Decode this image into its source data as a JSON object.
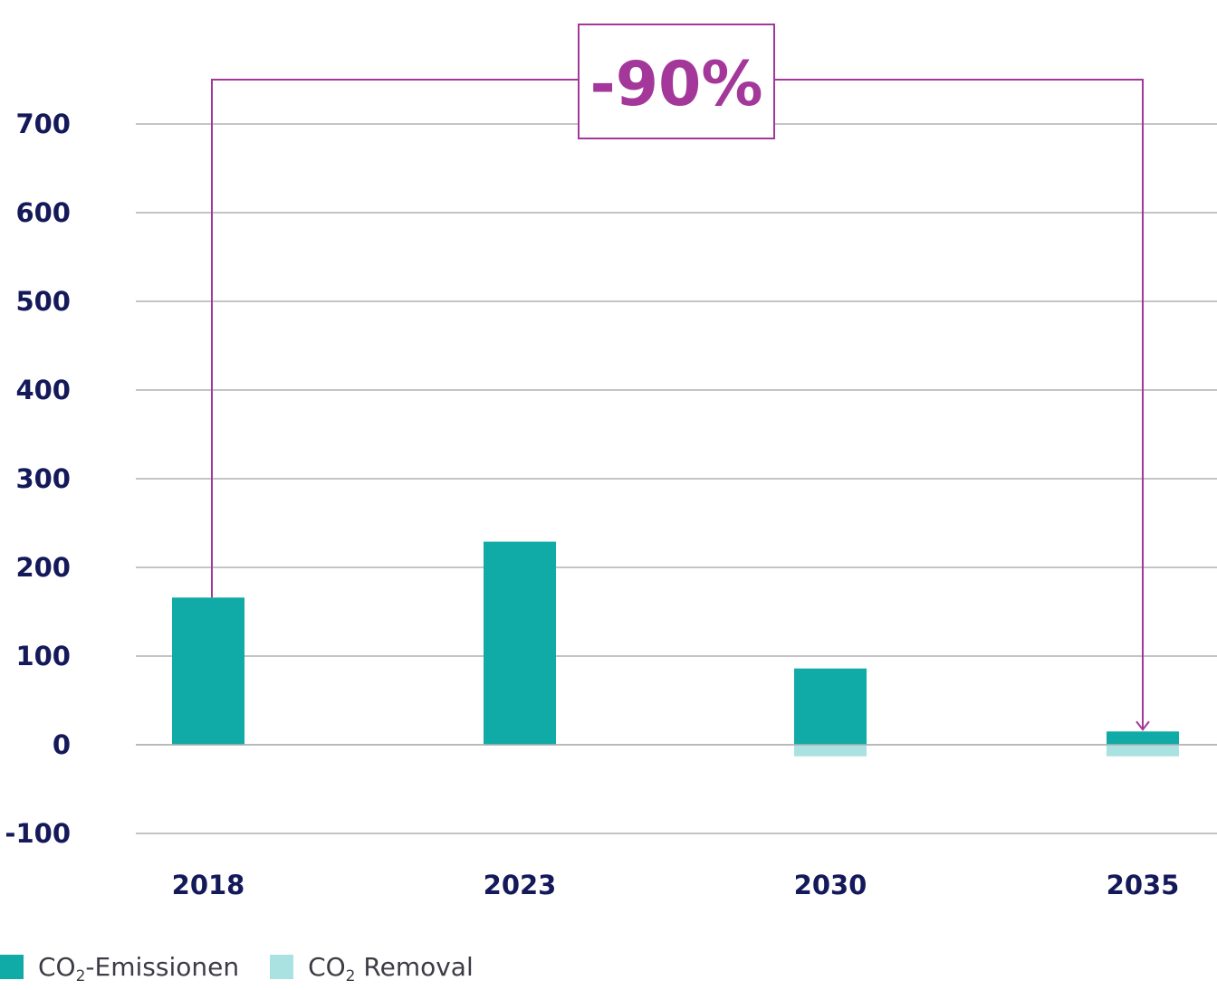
{
  "colors": {
    "emissions": "#10aba7",
    "removal": "#a9e2e0",
    "callout": "#a3389a",
    "text": "#14195a",
    "grid": "#b0b0b0"
  },
  "callout": {
    "label": "-90%"
  },
  "legend": {
    "emissions": {
      "main": "CO",
      "sub": "2",
      "rest": "-Emissionen"
    },
    "removal": {
      "main": "CO",
      "sub": "2",
      "rest": " Removal"
    }
  },
  "chart_data": {
    "type": "bar",
    "stacked": true,
    "categories": [
      "2018",
      "2023",
      "2030",
      "2035"
    ],
    "series": [
      {
        "name": "CO₂-Emissionen",
        "values": [
          166,
          229,
          86,
          15
        ]
      },
      {
        "name": "CO₂ Removal",
        "values": [
          0,
          0,
          -13,
          -13
        ]
      }
    ],
    "ylim": [
      -100,
      700
    ],
    "yticks": [
      700,
      600,
      500,
      400,
      300,
      200,
      100,
      0,
      -100
    ],
    "grid": true,
    "legend_position": "bottom-left",
    "annotation": {
      "text": "-90%",
      "from": "2018",
      "to": "2035"
    }
  }
}
